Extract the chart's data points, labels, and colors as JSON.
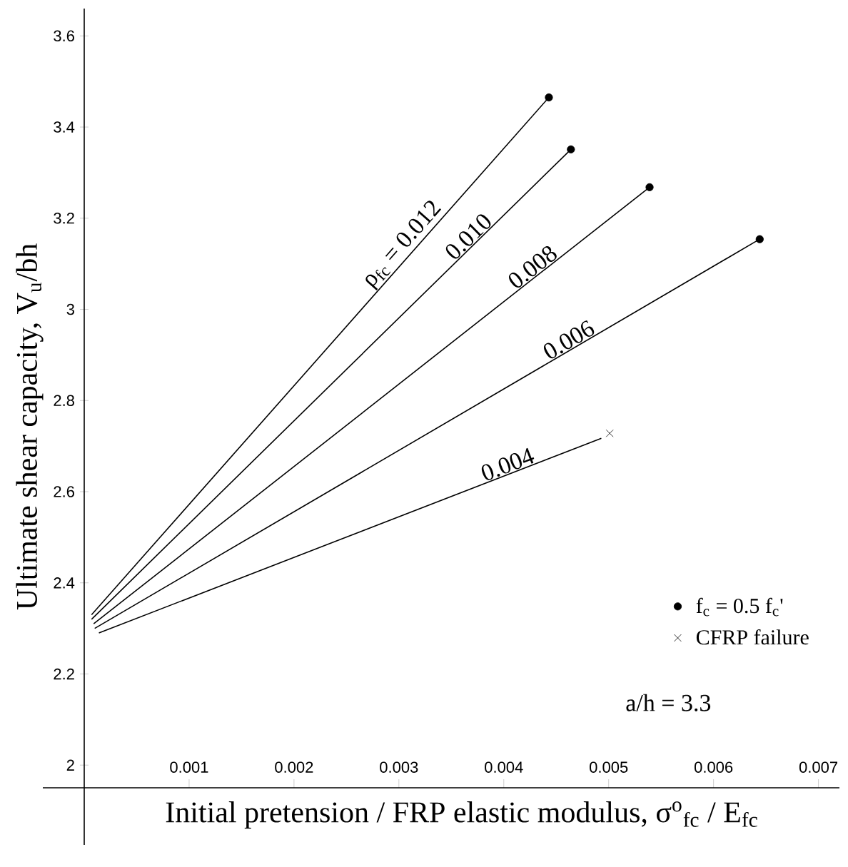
{
  "chart_data": {
    "type": "line",
    "xlabel": "Initial pretension / FRP elastic modulus,  σ$^{o}$$_{fc}$ / E$_{fc}$",
    "ylabel": "Ultimate shear capacity,  V$_{u}$/bh",
    "xlim": [
      0,
      0.0072
    ],
    "ylim": [
      1.825,
      3.66
    ],
    "xticks": [
      0.001,
      0.002,
      0.003,
      0.004,
      0.005,
      0.006,
      0.007
    ],
    "yticks": [
      2,
      2.2,
      2.4,
      2.6,
      2.8,
      3,
      3.2,
      3.4,
      3.6
    ],
    "grid": false,
    "legend": "bottom right",
    "series": [
      {
        "name": "ρ$_{fc}$ = 0.012",
        "color": "#000000",
        "marker": "none",
        "x": [
          7e-05,
          0.00443
        ],
        "values": [
          2.33,
          3.465
        ]
      },
      {
        "name": "0.010",
        "color": "#000000",
        "marker": "none",
        "x": [
          7e-05,
          0.00464
        ],
        "values": [
          2.32,
          3.351
        ]
      },
      {
        "name": "0.008",
        "color": "#000000",
        "marker": "none",
        "x": [
          9e-05,
          0.00539
        ],
        "values": [
          2.31,
          3.268
        ]
      },
      {
        "name": "0.006",
        "color": "#000000",
        "marker": "none",
        "x": [
          0.0001,
          0.00644
        ],
        "values": [
          2.3,
          3.154
        ]
      },
      {
        "name": "0.004",
        "color": "#000000",
        "marker": "none",
        "x": [
          0.00014,
          0.00493
        ],
        "values": [
          2.29,
          2.717
        ]
      },
      {
        "name": "f$_{c}$ = 0.5  f$_{c}$'",
        "type": "scatter",
        "color": "#000000",
        "marker": "circle",
        "x": [
          0.00443,
          0.00464,
          0.00539,
          0.00644
        ],
        "values": [
          3.465,
          3.351,
          3.268,
          3.154
        ]
      },
      {
        "name": "CFRP failure",
        "type": "scatter",
        "color": "#000000",
        "marker": "cross",
        "x": [
          0.00501
        ],
        "values": [
          2.728
        ]
      }
    ],
    "annotations": [
      "a/h = 3.3"
    ]
  }
}
